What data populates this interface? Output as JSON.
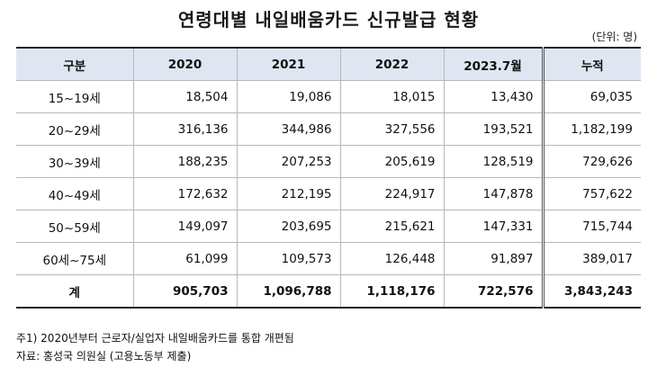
{
  "title": "연령대별 내일배움카드 신규발급 현황",
  "unit": "(단위: 명)",
  "table": {
    "headers": [
      "구분",
      "2020",
      "2021",
      "2022",
      "2023.7월",
      "누적"
    ],
    "rows": [
      [
        "15~19세",
        "18,504",
        "19,086",
        "18,015",
        "13,430",
        "69,035"
      ],
      [
        "20~29세",
        "316,136",
        "344,986",
        "327,556",
        "193,521",
        "1,182,199"
      ],
      [
        "30~39세",
        "188,235",
        "207,253",
        "205,619",
        "128,519",
        "729,626"
      ],
      [
        "40~49세",
        "172,632",
        "212,195",
        "224,917",
        "147,878",
        "757,622"
      ],
      [
        "50~59세",
        "149,097",
        "203,695",
        "215,621",
        "147,331",
        "715,744"
      ],
      [
        "60세~75세",
        "61,099",
        "109,573",
        "126,448",
        "91,897",
        "389,017"
      ]
    ],
    "total": [
      "계",
      "905,703",
      "1,096,788",
      "1,118,176",
      "722,576",
      "3,843,243"
    ]
  },
  "notes": [
    "주1) 2020년부터 근로자/실업자 내일배움카드를 통합 개편됨",
    "자료: 홍성국 의원실 (고용노동부 제출)"
  ]
}
